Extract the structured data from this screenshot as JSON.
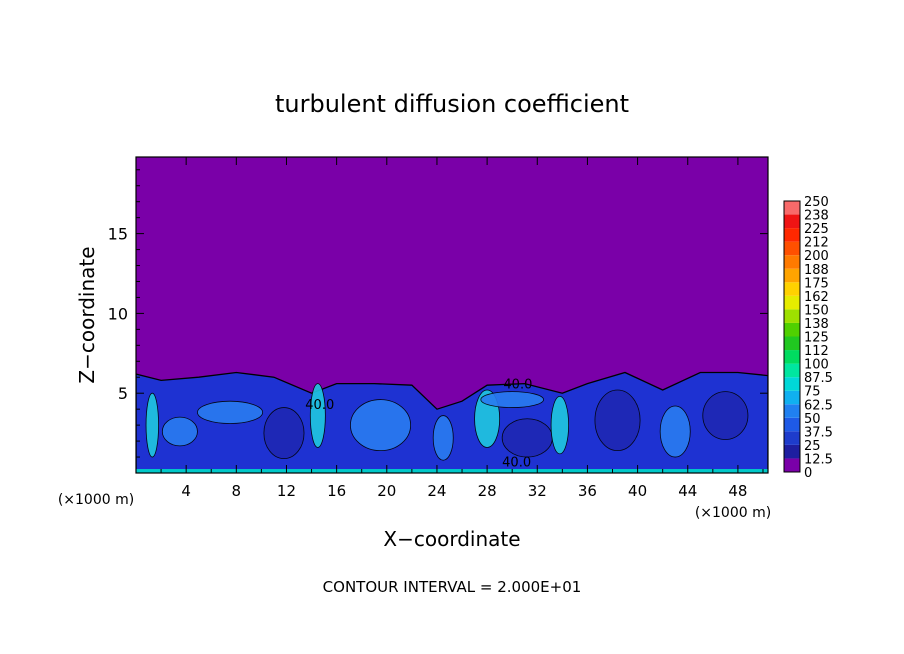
{
  "chart_data": {
    "type": "heatmap",
    "title": "turbulent diffusion coefficient",
    "xlabel": "X−coordinate",
    "ylabel": "Z−coordinate",
    "x_unit_left": "(×1000 m)",
    "x_unit_right": "(×1000 m)",
    "footer": "CONTOUR INTERVAL = 2.000E+01",
    "xlim": [
      0,
      50.4
    ],
    "ylim": [
      0,
      19.8
    ],
    "x_ticks": [
      "4",
      "8",
      "12",
      "16",
      "20",
      "24",
      "28",
      "32",
      "36",
      "40",
      "44",
      "48"
    ],
    "y_ticks": [
      "5",
      "10",
      "15"
    ],
    "contour_labels": [
      "40.0",
      "40.0",
      "40.0"
    ],
    "colorbar": {
      "labels": [
        "250",
        "238",
        "225",
        "212",
        "200",
        "188",
        "175",
        "162",
        "150",
        "138",
        "125",
        "112",
        "100",
        "87.5",
        "75",
        "62.5",
        "50",
        "37.5",
        "25",
        "12.5",
        "0"
      ],
      "colors": [
        "#7a00a8",
        "#1e1ea0",
        "#1e3ccc",
        "#1e5ae6",
        "#2080f0",
        "#10b0f0",
        "#00d8d8",
        "#00e6a0",
        "#00dc60",
        "#20c820",
        "#50d000",
        "#9ee000",
        "#e6ec00",
        "#ffd200",
        "#ffa400",
        "#ff7a00",
        "#ff5000",
        "#ff2800",
        "#f01414",
        "#f86a6a"
      ]
    },
    "background_value_range": "0 - 12.5",
    "mixed_layer_top_approx": [
      [
        0,
        6.2
      ],
      [
        2,
        5.8
      ],
      [
        5,
        6.0
      ],
      [
        8,
        6.3
      ],
      [
        11,
        6.0
      ],
      [
        14,
        5.0
      ],
      [
        16,
        5.6
      ],
      [
        19,
        5.6
      ],
      [
        22,
        5.5
      ],
      [
        24,
        4.0
      ],
      [
        26,
        4.5
      ],
      [
        28,
        5.5
      ],
      [
        31,
        5.6
      ],
      [
        34,
        5.0
      ],
      [
        36,
        5.6
      ],
      [
        39,
        6.3
      ],
      [
        42,
        5.2
      ],
      [
        45,
        6.3
      ],
      [
        48,
        6.3
      ],
      [
        50.4,
        6.1
      ]
    ]
  }
}
